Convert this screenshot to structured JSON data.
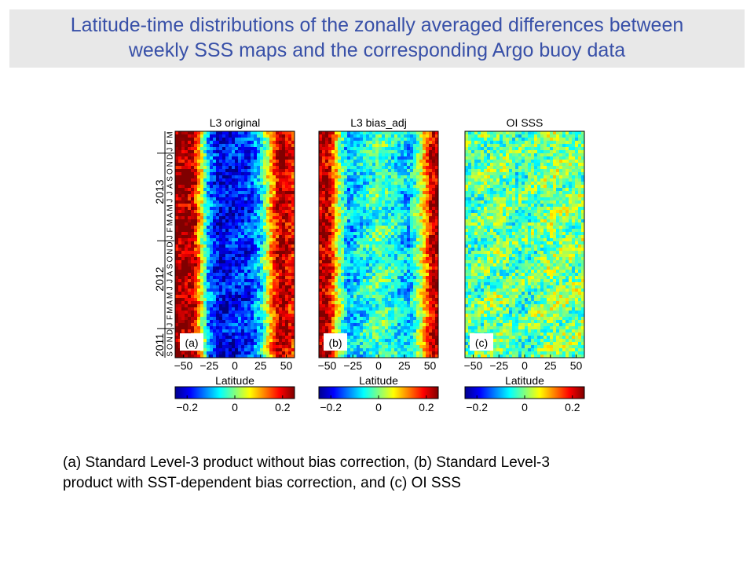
{
  "header": {
    "title_line1": "Latitude-time distributions of the zonally averaged differences between",
    "title_line2": "weekly SSS maps and the corresponding Argo buoy data"
  },
  "caption": {
    "line1": "(a) Standard Level-3 product without bias correction, (b) Standard Level-3",
    "line2": "product with SST-dependent bias correction, and (c) OI SSS"
  },
  "chart_data": [
    {
      "type": "heatmap",
      "title": "L3 original",
      "panel_label": "(a)",
      "xlabel": "Latitude",
      "xlim": [
        -58,
        58
      ],
      "xticks": [
        -50,
        -25,
        0,
        25,
        50
      ],
      "xtick_labels": [
        "−50",
        "−25",
        "0",
        "25",
        "50"
      ],
      "colorbar": {
        "range": [
          -0.25,
          0.25
        ],
        "ticks": [
          -0.2,
          0,
          0.2
        ],
        "tick_labels": [
          "−0.2",
          "0",
          "0.2"
        ],
        "colormap": "jet"
      },
      "pattern": [
        {
          "lat": -48,
          "value": 0.24
        },
        {
          "lat": -40,
          "value": 0.22
        },
        {
          "lat": -32,
          "value": 0.05
        },
        {
          "lat": -25,
          "value": -0.12
        },
        {
          "lat": -15,
          "value": -0.2
        },
        {
          "lat": 0,
          "value": -0.18
        },
        {
          "lat": 15,
          "value": -0.16
        },
        {
          "lat": 25,
          "value": -0.08
        },
        {
          "lat": 35,
          "value": 0.1
        },
        {
          "lat": 45,
          "value": 0.24
        },
        {
          "lat": 55,
          "value": 0.18
        }
      ]
    },
    {
      "type": "heatmap",
      "title": "L3 bias_adj",
      "panel_label": "(b)",
      "xlabel": "Latitude",
      "xlim": [
        -58,
        58
      ],
      "xticks": [
        -50,
        -25,
        0,
        25,
        50
      ],
      "xtick_labels": [
        "−50",
        "−25",
        "0",
        "25",
        "50"
      ],
      "colorbar": {
        "range": [
          -0.25,
          0.25
        ],
        "ticks": [
          -0.2,
          0,
          0.2
        ],
        "tick_labels": [
          "−0.2",
          "0",
          "0.2"
        ],
        "colormap": "jet"
      },
      "pattern": [
        {
          "lat": -48,
          "value": 0.22
        },
        {
          "lat": -40,
          "value": 0.05
        },
        {
          "lat": -30,
          "value": -0.1
        },
        {
          "lat": -15,
          "value": -0.06
        },
        {
          "lat": 0,
          "value": -0.02
        },
        {
          "lat": 15,
          "value": -0.05
        },
        {
          "lat": 30,
          "value": -0.1
        },
        {
          "lat": 42,
          "value": 0.05
        },
        {
          "lat": 52,
          "value": 0.22
        }
      ]
    },
    {
      "type": "heatmap",
      "title": "OI SSS",
      "panel_label": "(c)",
      "xlabel": "Latitude",
      "xlim": [
        -58,
        58
      ],
      "xticks": [
        -50,
        -25,
        0,
        25,
        50
      ],
      "xtick_labels": [
        "−50",
        "−25",
        "0",
        "25",
        "50"
      ],
      "colorbar": {
        "range": [
          -0.25,
          0.25
        ],
        "ticks": [
          -0.2,
          0,
          0.2
        ],
        "tick_labels": [
          "−0.2",
          "0",
          "0.2"
        ],
        "colormap": "jet"
      },
      "pattern": [
        {
          "lat": -50,
          "value": -0.02
        },
        {
          "lat": -25,
          "value": 0.0
        },
        {
          "lat": 0,
          "value": -0.03
        },
        {
          "lat": 25,
          "value": 0.01
        },
        {
          "lat": 50,
          "value": 0.0
        }
      ]
    }
  ],
  "time_axis": {
    "month_labels": [
      "S",
      "O",
      "N",
      "D",
      "J",
      "F",
      "M",
      "A",
      "M",
      "J",
      "J",
      "A",
      "S",
      "O",
      "N",
      "D",
      "J",
      "F",
      "M",
      "A",
      "M",
      "J",
      "J",
      "A",
      "S",
      "O",
      "N",
      "D",
      "J",
      "F",
      "M"
    ],
    "year_labels": [
      "2011",
      "2012",
      "2013"
    ]
  }
}
